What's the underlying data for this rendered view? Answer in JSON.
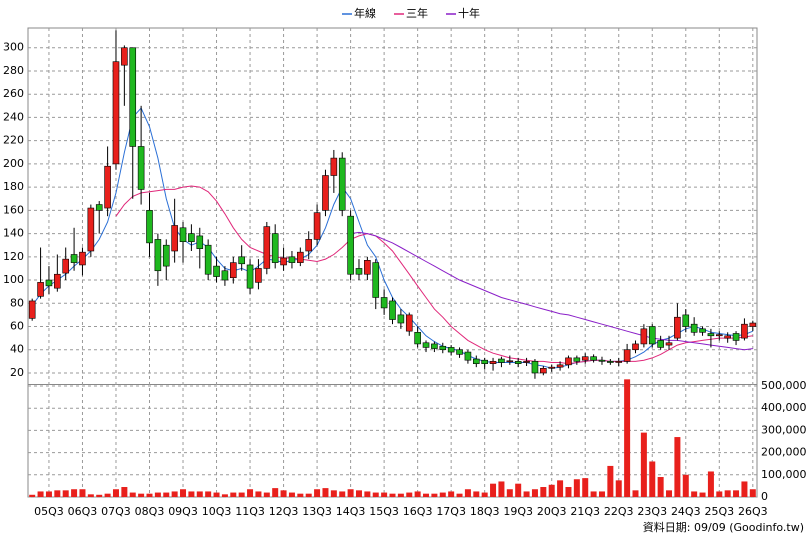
{
  "chart_data": {
    "type": "candlestick",
    "categories": [
      null,
      null,
      "05Q3",
      null,
      null,
      null,
      "06Q3",
      null,
      null,
      null,
      "07Q3",
      null,
      null,
      null,
      "08Q3",
      null,
      null,
      null,
      "09Q3",
      null,
      null,
      null,
      "10Q3",
      null,
      null,
      null,
      "11Q3",
      null,
      null,
      null,
      "12Q3",
      null,
      null,
      null,
      "13Q3",
      null,
      null,
      null,
      "14Q3",
      null,
      null,
      null,
      "15Q3",
      null,
      null,
      null,
      "16Q3",
      null,
      null,
      null,
      "17Q3",
      null,
      null,
      null,
      "18Q3",
      null,
      null,
      null,
      "19Q3",
      null,
      null,
      null,
      "20Q3",
      null,
      null,
      null,
      "21Q3",
      null,
      null,
      null,
      "22Q3",
      null,
      null,
      null,
      "23Q3",
      null,
      null,
      null,
      "24Q3",
      null,
      null,
      null,
      "25Q3",
      null,
      null,
      null,
      "26Q3"
    ],
    "open": [
      67,
      86,
      100,
      93,
      106,
      122,
      113,
      125,
      165,
      162,
      200,
      285,
      300,
      215,
      160,
      135,
      130,
      125,
      145,
      140,
      138,
      130,
      112,
      108,
      102,
      120,
      113,
      98,
      110,
      140,
      113,
      120,
      115,
      125,
      135,
      160,
      190,
      205,
      155,
      110,
      105,
      115,
      85,
      82,
      70,
      56,
      55,
      46,
      45,
      43,
      42,
      40,
      38,
      32,
      31,
      28,
      32,
      30,
      30,
      29,
      30,
      20,
      24,
      25,
      27,
      33,
      31,
      34,
      31,
      30,
      29,
      30,
      40,
      45,
      60,
      48,
      44,
      50,
      70,
      62,
      58,
      54,
      52,
      50,
      54,
      50,
      60
    ],
    "high": [
      84,
      128,
      112,
      122,
      128,
      145,
      128,
      165,
      168,
      215,
      315,
      302,
      300,
      250,
      175,
      140,
      135,
      170,
      150,
      148,
      145,
      135,
      120,
      112,
      120,
      130,
      118,
      118,
      150,
      148,
      128,
      125,
      128,
      142,
      165,
      195,
      212,
      210,
      160,
      118,
      120,
      118,
      92,
      85,
      75,
      72,
      60,
      48,
      47,
      46,
      44,
      42,
      40,
      35,
      33,
      33,
      34,
      35,
      33,
      33,
      32,
      26,
      27,
      30,
      35,
      35,
      37,
      36,
      34,
      32,
      33,
      45,
      48,
      62,
      62,
      52,
      52,
      80,
      75,
      68,
      60,
      58,
      56,
      55,
      56,
      67,
      65
    ],
    "low": [
      65,
      84,
      88,
      90,
      100,
      108,
      104,
      120,
      140,
      155,
      195,
      250,
      170,
      165,
      120,
      95,
      100,
      115,
      115,
      125,
      110,
      100,
      98,
      95,
      97,
      108,
      88,
      92,
      105,
      110,
      108,
      110,
      112,
      118,
      130,
      155,
      175,
      155,
      100,
      100,
      100,
      75,
      70,
      62,
      58,
      52,
      42,
      38,
      38,
      37,
      35,
      33,
      28,
      25,
      23,
      22,
      25,
      27,
      25,
      26,
      15,
      18,
      21,
      22,
      24,
      27,
      28,
      29,
      27,
      27,
      26,
      28,
      37,
      42,
      42,
      40,
      40,
      48,
      55,
      52,
      52,
      42,
      48,
      46,
      44,
      48,
      56
    ],
    "close": [
      82,
      98,
      95,
      105,
      118,
      115,
      124,
      162,
      160,
      198,
      288,
      300,
      215,
      178,
      132,
      108,
      112,
      147,
      133,
      133,
      127,
      105,
      103,
      100,
      115,
      114,
      93,
      110,
      146,
      115,
      119,
      115,
      124,
      135,
      158,
      190,
      205,
      160,
      105,
      105,
      117,
      85,
      76,
      66,
      63,
      70,
      45,
      42,
      41,
      40,
      38,
      36,
      31,
      28,
      28,
      30,
      29,
      30.5,
      28,
      30,
      20,
      24,
      25,
      27,
      33,
      30,
      34,
      31,
      30,
      29,
      30,
      40,
      45,
      58,
      45,
      42,
      46,
      68,
      60,
      55,
      55,
      52,
      53,
      52,
      48,
      62,
      63
    ],
    "up_color": "#e8201c",
    "down_color": "#1fb81f",
    "series": [
      {
        "name": "年線",
        "color": "#2a6fd6",
        "values": [
          78,
          88,
          95,
          100,
          105,
          112,
          118,
          125,
          135,
          150,
          175,
          210,
          240,
          248,
          232,
          205,
          170,
          145,
          135,
          130,
          133,
          128,
          118,
          110,
          108,
          110,
          107,
          112,
          118,
          117,
          115,
          117,
          118,
          122,
          130,
          145,
          165,
          180,
          170,
          150,
          130,
          120,
          100,
          85,
          75,
          68,
          60,
          52,
          47,
          43,
          41,
          39,
          35,
          32,
          30,
          29,
          29,
          29,
          29,
          29,
          27,
          26,
          24,
          25,
          27,
          29,
          30,
          31,
          31,
          30,
          30,
          31,
          34,
          38,
          44,
          48,
          50,
          54,
          58,
          60,
          58,
          55,
          54,
          53,
          52,
          53,
          56
        ]
      },
      {
        "name": "三年",
        "color": "#e0287a",
        "values": [
          null,
          null,
          null,
          null,
          null,
          null,
          null,
          null,
          null,
          null,
          155,
          165,
          172,
          175,
          176,
          177,
          178,
          178,
          180,
          181,
          180,
          176,
          168,
          157,
          145,
          135,
          128,
          125,
          122,
          120,
          119,
          119,
          118,
          117,
          116,
          118,
          122,
          128,
          135,
          138,
          140,
          138,
          132,
          125,
          115,
          105,
          95,
          85,
          75,
          68,
          60,
          54,
          48,
          44,
          40,
          37,
          35,
          33,
          32,
          31,
          30,
          30,
          29,
          29,
          28,
          29,
          30,
          31,
          31,
          30,
          30,
          30,
          30,
          31,
          33,
          36,
          40,
          44,
          46,
          47,
          48,
          49,
          50,
          50,
          50,
          51,
          52
        ]
      },
      {
        "name": "十年",
        "color": "#8a1fc8",
        "values": [
          null,
          null,
          null,
          null,
          null,
          null,
          null,
          null,
          null,
          null,
          null,
          null,
          null,
          null,
          null,
          null,
          null,
          null,
          null,
          null,
          null,
          null,
          null,
          null,
          null,
          null,
          null,
          null,
          null,
          null,
          null,
          null,
          null,
          null,
          null,
          null,
          null,
          null,
          140,
          141,
          140,
          138,
          135,
          132,
          128,
          124,
          120,
          116,
          112,
          108,
          104,
          100,
          97,
          94,
          91,
          88,
          85,
          83,
          81,
          79,
          77,
          75,
          73,
          71,
          70,
          68,
          66,
          64,
          62,
          60,
          58,
          56,
          54,
          52,
          50,
          49,
          48,
          48,
          47,
          46,
          45,
          44,
          43,
          42,
          41,
          40,
          41
        ]
      }
    ],
    "ylim": [
      10.5,
      317
    ],
    "yticks": [
      20,
      40,
      60,
      80,
      100,
      120,
      140,
      160,
      180,
      200,
      220,
      240,
      260,
      280,
      300
    ],
    "grid": true,
    "volume": {
      "color": "#e8201c",
      "values": [
        10000,
        25000,
        25000,
        30000,
        30000,
        35000,
        35000,
        12000,
        10000,
        15000,
        35000,
        45000,
        20000,
        15000,
        15000,
        20000,
        20000,
        25000,
        35000,
        25000,
        25000,
        25000,
        20000,
        12000,
        20000,
        20000,
        35000,
        25000,
        20000,
        40000,
        30000,
        20000,
        15000,
        15000,
        35000,
        40000,
        30000,
        25000,
        35000,
        30000,
        25000,
        20000,
        20000,
        15000,
        15000,
        20000,
        25000,
        15000,
        15000,
        20000,
        25000,
        15000,
        35000,
        25000,
        20000,
        60000,
        70000,
        35000,
        60000,
        25000,
        35000,
        45000,
        55000,
        75000,
        45000,
        80000,
        85000,
        25000,
        25000,
        140000,
        75000,
        530000,
        30000,
        290000,
        160000,
        90000,
        30000,
        270000,
        100000,
        25000,
        20000,
        115000,
        25000,
        30000,
        30000,
        70000,
        35000
      ],
      "ylim": [
        0,
        500000
      ],
      "yticks": [
        0,
        {
          "value": 100000,
          "label": "100,000"
        },
        {
          "value": 200000,
          "label": "200,000"
        },
        {
          "value": 300000,
          "label": "300,000"
        },
        {
          "value": 400000,
          "label": "400,000"
        },
        {
          "value": 500000,
          "label": "500,000"
        }
      ]
    },
    "source": "資料日期: 09/09 (Goodinfo.tw)"
  }
}
